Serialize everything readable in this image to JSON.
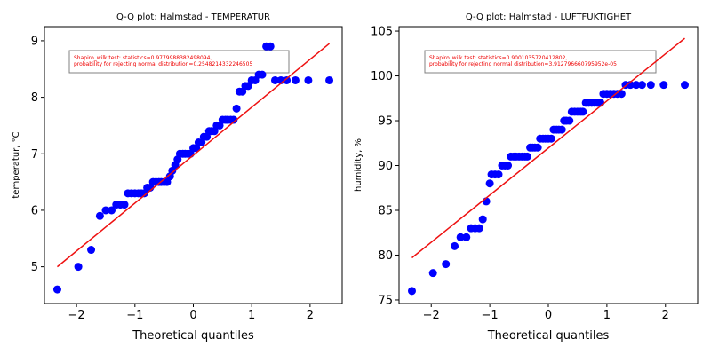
{
  "chart_data": [
    {
      "type": "scatter",
      "title": "Q-Q plot: Halmstad - TEMPERATUR",
      "xlabel": "Theoretical quantiles",
      "ylabel": "temperatur, °C",
      "xlim": [
        -2.55,
        2.55
      ],
      "ylim": [
        4.35,
        9.25
      ],
      "xticks": [
        -2,
        -1,
        0,
        1,
        2
      ],
      "yticks": [
        5,
        6,
        7,
        8,
        9
      ],
      "annotation": [
        "Shapiro_wilk test: statistics=0.9779988382498094,",
        " probability for rejecting normal distribution=0.2548214332246505"
      ],
      "points": {
        "x": [
          -2.33,
          -1.97,
          -1.75,
          -1.6,
          -1.5,
          -1.4,
          -1.32,
          -1.25,
          -1.18,
          -1.12,
          -1.06,
          -1.0,
          -0.94,
          -0.89,
          -0.84,
          -0.79,
          -0.74,
          -0.69,
          -0.64,
          -0.59,
          -0.55,
          -0.5,
          -0.45,
          -0.4,
          -0.36,
          -0.31,
          -0.27,
          -0.23,
          -0.18,
          -0.14,
          -0.09,
          -0.05,
          0.0,
          0.05,
          0.09,
          0.14,
          0.18,
          0.23,
          0.27,
          0.31,
          0.36,
          0.4,
          0.45,
          0.5,
          0.55,
          0.59,
          0.64,
          0.69,
          0.74,
          0.79,
          0.84,
          0.89,
          0.94,
          1.0,
          1.06,
          1.12,
          1.18,
          1.25,
          1.32,
          1.4,
          1.5,
          1.6,
          1.75,
          1.97,
          2.33
        ],
        "y": [
          4.6,
          5.0,
          5.3,
          5.9,
          6.0,
          6.0,
          6.1,
          6.1,
          6.1,
          6.3,
          6.3,
          6.3,
          6.3,
          6.3,
          6.3,
          6.4,
          6.4,
          6.5,
          6.5,
          6.5,
          6.5,
          6.5,
          6.5,
          6.6,
          6.7,
          6.8,
          6.9,
          7.0,
          7.0,
          7.0,
          7.0,
          7.0,
          7.1,
          7.1,
          7.2,
          7.2,
          7.3,
          7.3,
          7.4,
          7.4,
          7.4,
          7.5,
          7.5,
          7.6,
          7.6,
          7.6,
          7.6,
          7.6,
          7.8,
          8.1,
          8.1,
          8.2,
          8.2,
          8.3,
          8.3,
          8.4,
          8.4,
          8.9,
          8.9,
          8.3,
          8.3,
          8.3,
          8.3,
          8.3,
          8.3
        ],
        "color": "#0000ff"
      },
      "fit_line": {
        "x": [
          -2.33,
          2.33
        ],
        "y": [
          5.0,
          8.95
        ],
        "color": "#ee1111"
      }
    },
    {
      "type": "scatter",
      "title": "Q-Q plot: Halmstad - LUFTFUKTIGHET",
      "xlabel": "Theoretical quantiles",
      "ylabel": "humidity, %",
      "xlim": [
        -2.55,
        2.55
      ],
      "ylim": [
        74.6,
        105.5
      ],
      "xticks": [
        -2,
        -1,
        0,
        1,
        2
      ],
      "yticks": [
        75,
        80,
        85,
        90,
        95,
        100,
        105
      ],
      "annotation": [
        "Shapiro_wilk test: statistics=0.9001035720412802,",
        " probability for rejecting normal distribution=3.912796660795952e-05"
      ],
      "points": {
        "x": [
          -2.33,
          -1.97,
          -1.75,
          -1.6,
          -1.5,
          -1.4,
          -1.32,
          -1.25,
          -1.18,
          -1.12,
          -1.06,
          -1.0,
          -0.97,
          -0.91,
          -0.85,
          -0.79,
          -0.74,
          -0.69,
          -0.64,
          -0.59,
          -0.55,
          -0.5,
          -0.45,
          -0.4,
          -0.36,
          -0.31,
          -0.27,
          -0.23,
          -0.18,
          -0.14,
          -0.09,
          -0.05,
          0.0,
          0.05,
          0.09,
          0.14,
          0.18,
          0.23,
          0.27,
          0.31,
          0.36,
          0.4,
          0.45,
          0.5,
          0.55,
          0.59,
          0.64,
          0.69,
          0.74,
          0.79,
          0.84,
          0.89,
          0.94,
          1.0,
          1.06,
          1.12,
          1.18,
          1.25,
          1.32,
          1.4,
          1.5,
          1.6,
          1.75,
          1.97,
          2.33
        ],
        "y": [
          76,
          78,
          79,
          81,
          82,
          82,
          83,
          83,
          83,
          84,
          86,
          88,
          89,
          89,
          89,
          90,
          90,
          90,
          91,
          91,
          91,
          91,
          91,
          91,
          91,
          92,
          92,
          92,
          92,
          93,
          93,
          93,
          93,
          93,
          94,
          94,
          94,
          94,
          95,
          95,
          95,
          96,
          96,
          96,
          96,
          96,
          97,
          97,
          97,
          97,
          97,
          97,
          98,
          98,
          98,
          98,
          98,
          98,
          99,
          99,
          99,
          99,
          99,
          99,
          99
        ],
        "color": "#0000ff"
      },
      "fit_line": {
        "x": [
          -2.33,
          2.33
        ],
        "y": [
          79.7,
          104.2
        ],
        "color": "#ee1111"
      }
    }
  ]
}
